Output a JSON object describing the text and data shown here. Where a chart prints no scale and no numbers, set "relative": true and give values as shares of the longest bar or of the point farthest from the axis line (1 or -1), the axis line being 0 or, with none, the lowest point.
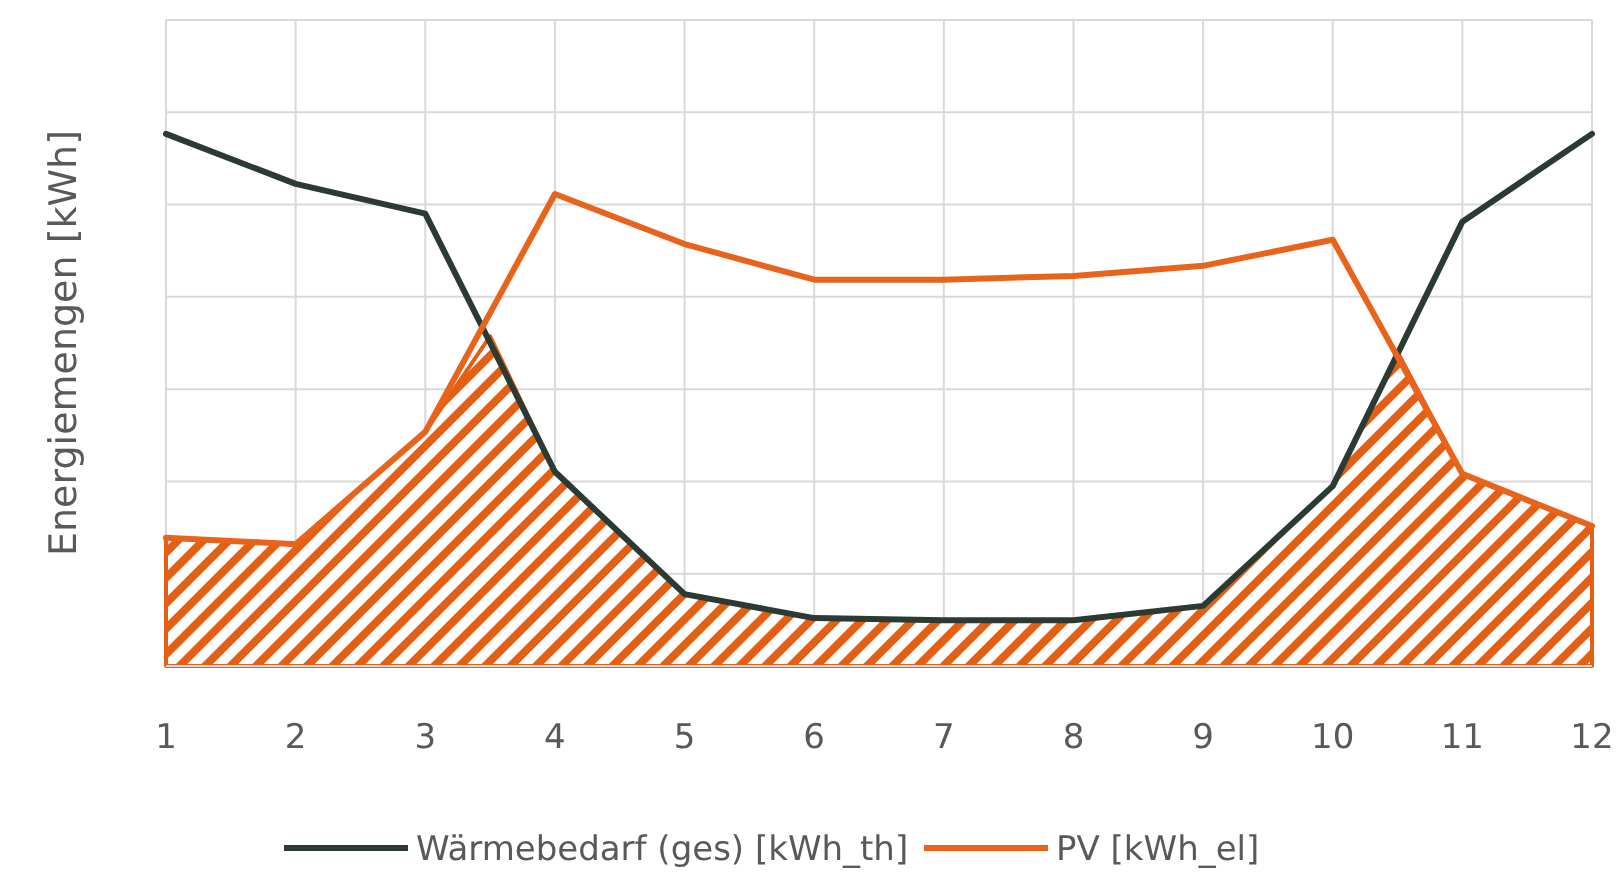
{
  "chart_data": {
    "type": "line",
    "relative": true,
    "ylabel": "Energiemengen [kWh]",
    "x": [
      1,
      2,
      3,
      4,
      5,
      6,
      7,
      8,
      9,
      10,
      11,
      12
    ],
    "xlim": [
      1,
      12
    ],
    "xticks": [
      1,
      2,
      3,
      4,
      5,
      6,
      7,
      8,
      9,
      10,
      11,
      12
    ],
    "grid": true,
    "legend": "bottom",
    "marker": "none",
    "series": [
      {
        "type": "area",
        "color": "#e35f14",
        "x": [
          1,
          2,
          3,
          3.5,
          4,
          5,
          6,
          7,
          8,
          9,
          10,
          10.5,
          11,
          12
        ],
        "values": [
          0.241,
          0.229,
          0.44,
          0.62,
          0.365,
          0.135,
          0.09,
          0.086,
          0.086,
          0.113,
          0.338,
          0.59,
          0.361,
          0.263
        ]
      },
      {
        "name": "Wärmebedarf (ges) [kWh_th]",
        "color": "#2b3a33",
        "values": [
          1,
          0.906,
          0.85,
          0.365,
          0.135,
          0.09,
          0.086,
          0.086,
          0.113,
          0.338,
          0.835,
          1
        ]
      },
      {
        "name": "PV [kWh_el]",
        "color": "#e8641c",
        "values": [
          0.241,
          0.229,
          0.44,
          0.887,
          0.793,
          0.726,
          0.726,
          0.733,
          0.752,
          0.801,
          0.361,
          0.263
        ]
      }
    ]
  }
}
